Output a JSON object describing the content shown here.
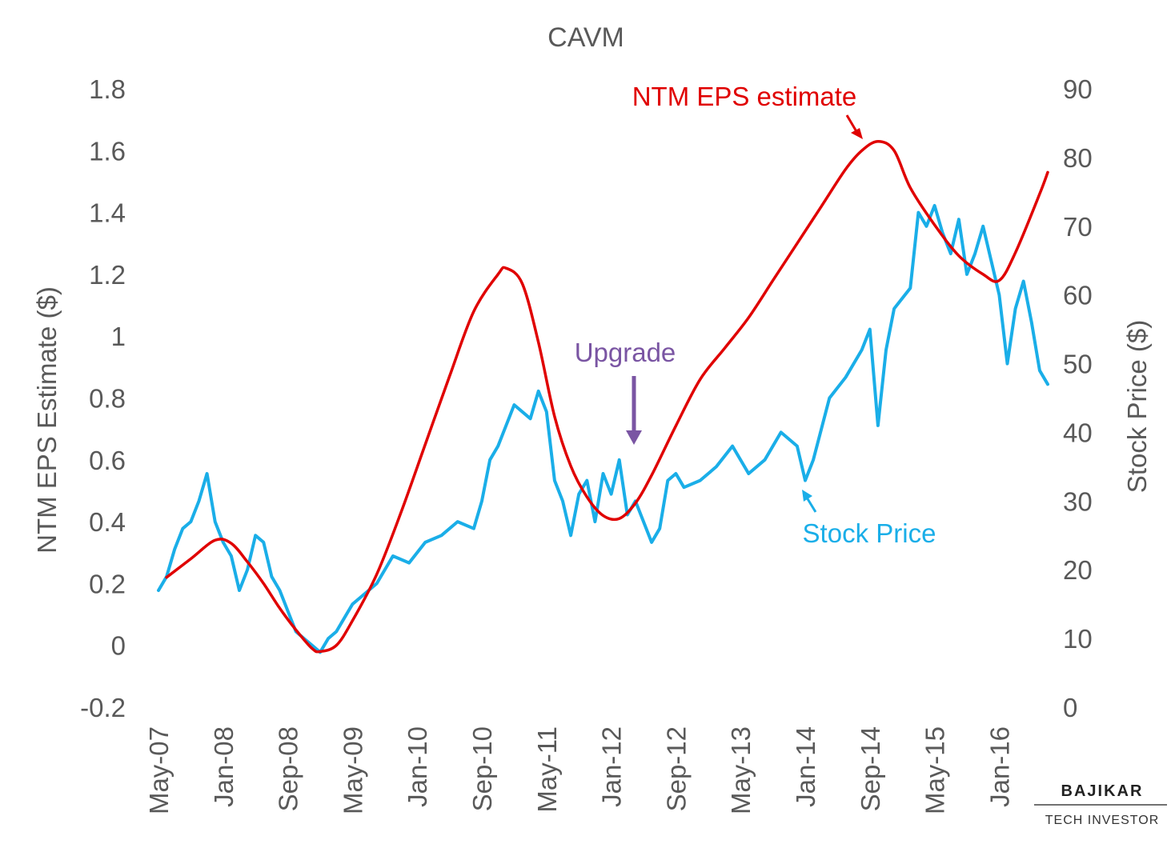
{
  "chart_data": {
    "type": "line",
    "title": "CAVM",
    "ylabel_left": "NTM EPS Estimate ($)",
    "ylabel_right": "Stock Price ($)",
    "ylim_left": [
      -0.2,
      1.8
    ],
    "ylim_right": [
      0,
      90
    ],
    "left_ticks": [
      "1.8",
      "1.6",
      "1.4",
      "1.2",
      "1",
      "0.8",
      "0.6",
      "0.4",
      "0.2",
      "0",
      "-0.2"
    ],
    "right_ticks": [
      "90",
      "80",
      "70",
      "60",
      "50",
      "40",
      "30",
      "20",
      "10",
      "0"
    ],
    "x_ticks": [
      "May-07",
      "Jan-08",
      "Sep-08",
      "May-09",
      "Jan-10",
      "Sep-10",
      "May-11",
      "Jan-12",
      "Sep-12",
      "May-13",
      "Jan-14",
      "Sep-14",
      "May-15",
      "Jan-16"
    ],
    "grid": false,
    "legend": "none",
    "series": [
      {
        "name": "NTM EPS estimate",
        "axis": "left",
        "color": "#e00000",
        "points": [
          [
            "2007-06",
            0.22
          ],
          [
            "2007-09",
            0.28
          ],
          [
            "2007-12",
            0.34
          ],
          [
            "2008-02",
            0.33
          ],
          [
            "2008-04",
            0.27
          ],
          [
            "2008-06",
            0.2
          ],
          [
            "2008-08",
            0.12
          ],
          [
            "2008-10",
            0.05
          ],
          [
            "2008-12",
            -0.01
          ],
          [
            "2009-01",
            -0.02
          ],
          [
            "2009-03",
            0.0
          ],
          [
            "2009-05",
            0.08
          ],
          [
            "2009-08",
            0.23
          ],
          [
            "2009-11",
            0.43
          ],
          [
            "2010-02",
            0.65
          ],
          [
            "2010-05",
            0.87
          ],
          [
            "2010-08",
            1.08
          ],
          [
            "2010-11",
            1.2
          ],
          [
            "2010-12",
            1.22
          ],
          [
            "2011-02",
            1.17
          ],
          [
            "2011-04",
            0.98
          ],
          [
            "2011-06",
            0.74
          ],
          [
            "2011-08",
            0.58
          ],
          [
            "2011-10",
            0.48
          ],
          [
            "2011-12",
            0.42
          ],
          [
            "2012-02",
            0.41
          ],
          [
            "2012-04",
            0.46
          ],
          [
            "2012-06",
            0.55
          ],
          [
            "2012-09",
            0.71
          ],
          [
            "2012-12",
            0.86
          ],
          [
            "2013-03",
            0.96
          ],
          [
            "2013-06",
            1.06
          ],
          [
            "2013-09",
            1.18
          ],
          [
            "2013-12",
            1.3
          ],
          [
            "2014-03",
            1.42
          ],
          [
            "2014-06",
            1.54
          ],
          [
            "2014-08",
            1.6
          ],
          [
            "2014-10",
            1.63
          ],
          [
            "2014-12",
            1.6
          ],
          [
            "2015-02",
            1.48
          ],
          [
            "2015-05",
            1.36
          ],
          [
            "2015-08",
            1.26
          ],
          [
            "2015-11",
            1.2
          ],
          [
            "2016-01",
            1.18
          ],
          [
            "2016-03",
            1.27
          ],
          [
            "2016-06",
            1.46
          ],
          [
            "2016-07",
            1.53
          ]
        ]
      },
      {
        "name": "Stock Price",
        "axis": "right",
        "color": "#1aaee8",
        "points": [
          [
            "2007-05",
            17
          ],
          [
            "2007-06",
            19
          ],
          [
            "2007-07",
            23
          ],
          [
            "2007-08",
            26
          ],
          [
            "2007-09",
            27
          ],
          [
            "2007-10",
            30
          ],
          [
            "2007-11",
            34
          ],
          [
            "2007-12",
            27
          ],
          [
            "2008-01",
            24
          ],
          [
            "2008-02",
            22
          ],
          [
            "2008-03",
            17
          ],
          [
            "2008-04",
            20
          ],
          [
            "2008-05",
            25
          ],
          [
            "2008-06",
            24
          ],
          [
            "2008-07",
            19
          ],
          [
            "2008-08",
            17
          ],
          [
            "2008-09",
            14
          ],
          [
            "2008-10",
            11
          ],
          [
            "2008-11",
            10
          ],
          [
            "2008-12",
            9
          ],
          [
            "2009-01",
            8
          ],
          [
            "2009-02",
            10
          ],
          [
            "2009-03",
            11
          ],
          [
            "2009-04",
            13
          ],
          [
            "2009-05",
            15
          ],
          [
            "2009-06",
            16
          ],
          [
            "2009-08",
            18
          ],
          [
            "2009-10",
            22
          ],
          [
            "2009-12",
            21
          ],
          [
            "2010-02",
            24
          ],
          [
            "2010-04",
            25
          ],
          [
            "2010-06",
            27
          ],
          [
            "2010-08",
            26
          ],
          [
            "2010-09",
            30
          ],
          [
            "2010-10",
            36
          ],
          [
            "2010-11",
            38
          ],
          [
            "2011-01",
            44
          ],
          [
            "2011-03",
            42
          ],
          [
            "2011-04",
            46
          ],
          [
            "2011-05",
            43
          ],
          [
            "2011-06",
            33
          ],
          [
            "2011-07",
            30
          ],
          [
            "2011-08",
            25
          ],
          [
            "2011-09",
            31
          ],
          [
            "2011-10",
            33
          ],
          [
            "2011-11",
            27
          ],
          [
            "2011-12",
            34
          ],
          [
            "2012-01",
            31
          ],
          [
            "2012-02",
            36
          ],
          [
            "2012-03",
            28
          ],
          [
            "2012-04",
            30
          ],
          [
            "2012-05",
            27
          ],
          [
            "2012-06",
            24
          ],
          [
            "2012-07",
            26
          ],
          [
            "2012-08",
            33
          ],
          [
            "2012-09",
            34
          ],
          [
            "2012-10",
            32
          ],
          [
            "2012-12",
            33
          ],
          [
            "2013-02",
            35
          ],
          [
            "2013-04",
            38
          ],
          [
            "2013-06",
            34
          ],
          [
            "2013-08",
            36
          ],
          [
            "2013-10",
            40
          ],
          [
            "2013-12",
            38
          ],
          [
            "2014-01",
            33
          ],
          [
            "2014-02",
            36
          ],
          [
            "2014-04",
            45
          ],
          [
            "2014-06",
            48
          ],
          [
            "2014-08",
            52
          ],
          [
            "2014-09",
            55
          ],
          [
            "2014-10",
            41
          ],
          [
            "2014-11",
            52
          ],
          [
            "2014-12",
            58
          ],
          [
            "2015-02",
            61
          ],
          [
            "2015-03",
            72
          ],
          [
            "2015-04",
            70
          ],
          [
            "2015-05",
            73
          ],
          [
            "2015-06",
            69
          ],
          [
            "2015-07",
            66
          ],
          [
            "2015-08",
            71
          ],
          [
            "2015-09",
            63
          ],
          [
            "2015-10",
            66
          ],
          [
            "2015-11",
            70
          ],
          [
            "2015-12",
            65
          ],
          [
            "2016-01",
            60
          ],
          [
            "2016-02",
            50
          ],
          [
            "2016-03",
            58
          ],
          [
            "2016-04",
            62
          ],
          [
            "2016-05",
            56
          ],
          [
            "2016-06",
            49
          ],
          [
            "2016-07",
            47
          ]
        ]
      }
    ],
    "annotations": [
      {
        "text": "NTM EPS estimate",
        "color": "#e00000"
      },
      {
        "text": "Stock Price",
        "color": "#1aaee8"
      },
      {
        "text": "Upgrade",
        "color": "#7a55a3"
      }
    ]
  },
  "branding": {
    "name": "BAJIKAR",
    "tagline": "TECH INVESTOR"
  }
}
